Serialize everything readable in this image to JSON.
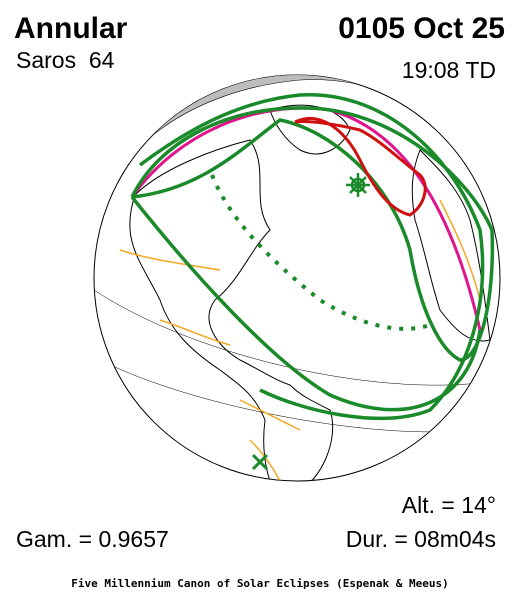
{
  "header": {
    "eclipse_type": "Annular",
    "date": "0105 Oct 25",
    "saros": "Saros  64",
    "time": "19:08 TD"
  },
  "stats": {
    "altitude": "Alt. = 14°",
    "gamma": "Gam. = 0.9657",
    "duration": "Dur. = 08m04s"
  },
  "footer": "Five Millennium Canon of Solar Eclipses (Espenak & Meeus)"
}
